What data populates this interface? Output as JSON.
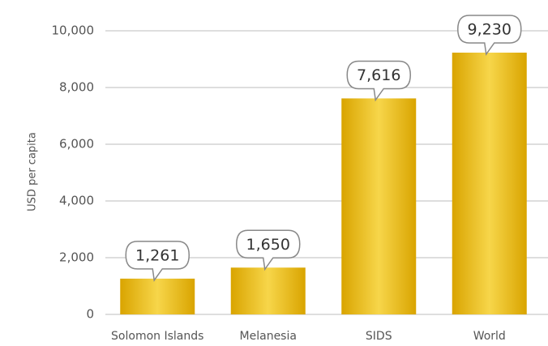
{
  "chart_data": {
    "type": "bar",
    "y_label": "USD per capita",
    "categories": [
      "Solomon Islands",
      "Melanesia",
      "SIDS",
      "World"
    ],
    "values": [
      1261,
      1650,
      7616,
      9230
    ],
    "value_labels": [
      "1,261",
      "1,650",
      "7,616",
      "9,230"
    ],
    "color": "#e8b400",
    "ylim": [
      0,
      10000
    ],
    "yticks": [
      0,
      {
        "value": 2000,
        "label": "2,000"
      },
      {
        "value": 4000,
        "label": "4,000"
      },
      {
        "value": 6000,
        "label": "6,000"
      },
      {
        "value": 8000,
        "label": "8,000"
      },
      {
        "value": 10000,
        "label": "10,000"
      }
    ],
    "grid": true
  }
}
